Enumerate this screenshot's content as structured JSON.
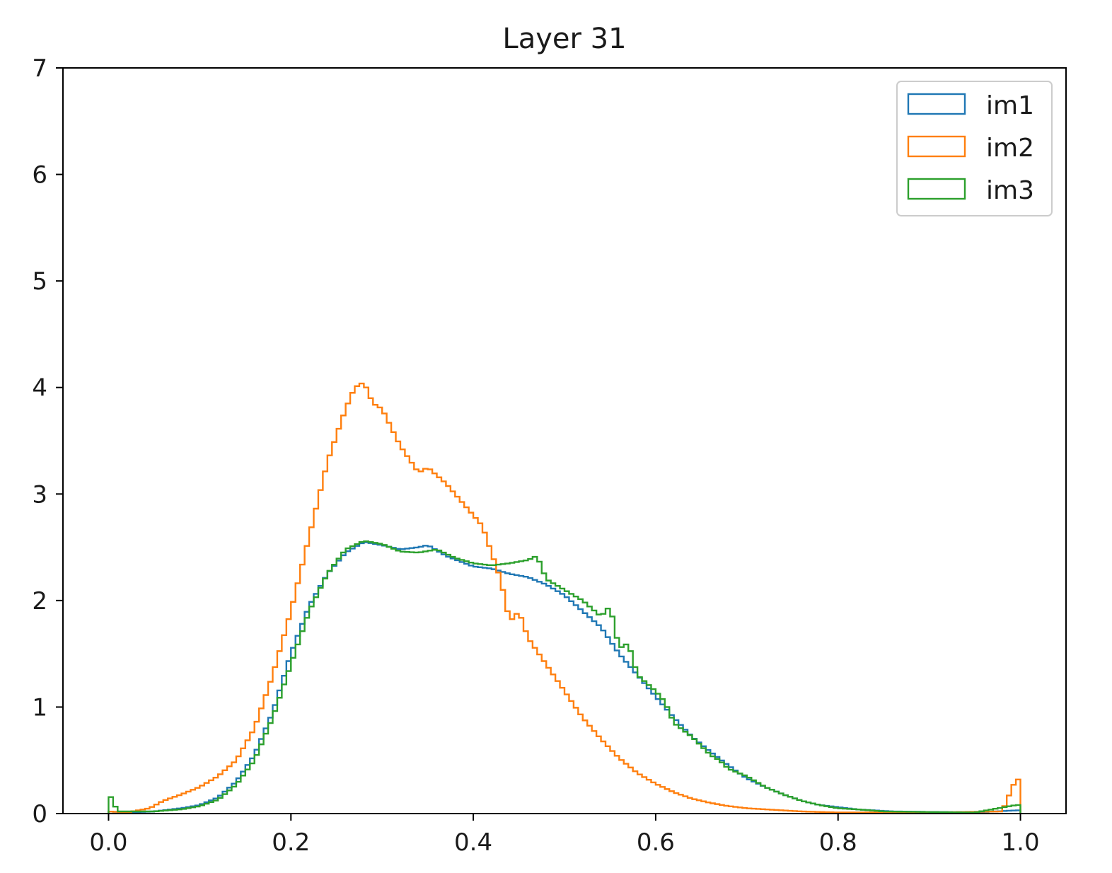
{
  "chart_data": {
    "type": "histogram-step",
    "title": "Layer 31",
    "xlabel": "",
    "ylabel": "",
    "xlim": [
      -0.05,
      1.05
    ],
    "ylim": [
      0,
      7
    ],
    "xticks": [
      0.0,
      0.2,
      0.4,
      0.6,
      0.8,
      1.0
    ],
    "xtick_labels": [
      "0.0",
      "0.2",
      "0.4",
      "0.6",
      "0.8",
      "1.0"
    ],
    "yticks": [
      0,
      1,
      2,
      3,
      4,
      5,
      6,
      7
    ],
    "ytick_labels": [
      "0",
      "1",
      "2",
      "3",
      "4",
      "5",
      "6",
      "7"
    ],
    "grid": false,
    "legend_position": "top-right",
    "bin_width": 0.005,
    "series": [
      {
        "name": "im1",
        "color": "#1f77b4",
        "points": [
          [
            0.0,
            0.02
          ],
          [
            0.02,
            0.01
          ],
          [
            0.05,
            0.02
          ],
          [
            0.08,
            0.05
          ],
          [
            0.1,
            0.08
          ],
          [
            0.12,
            0.15
          ],
          [
            0.14,
            0.3
          ],
          [
            0.16,
            0.55
          ],
          [
            0.18,
            0.95
          ],
          [
            0.2,
            1.5
          ],
          [
            0.22,
            1.95
          ],
          [
            0.24,
            2.25
          ],
          [
            0.26,
            2.45
          ],
          [
            0.28,
            2.55
          ],
          [
            0.3,
            2.52
          ],
          [
            0.32,
            2.48
          ],
          [
            0.34,
            2.5
          ],
          [
            0.35,
            2.52
          ],
          [
            0.37,
            2.42
          ],
          [
            0.4,
            2.32
          ],
          [
            0.42,
            2.3
          ],
          [
            0.44,
            2.25
          ],
          [
            0.46,
            2.22
          ],
          [
            0.48,
            2.15
          ],
          [
            0.5,
            2.05
          ],
          [
            0.52,
            1.9
          ],
          [
            0.54,
            1.75
          ],
          [
            0.56,
            1.5
          ],
          [
            0.58,
            1.3
          ],
          [
            0.6,
            1.1
          ],
          [
            0.62,
            0.9
          ],
          [
            0.64,
            0.72
          ],
          [
            0.66,
            0.58
          ],
          [
            0.68,
            0.45
          ],
          [
            0.7,
            0.33
          ],
          [
            0.72,
            0.25
          ],
          [
            0.74,
            0.18
          ],
          [
            0.76,
            0.12
          ],
          [
            0.78,
            0.08
          ],
          [
            0.8,
            0.06
          ],
          [
            0.82,
            0.04
          ],
          [
            0.84,
            0.03
          ],
          [
            0.86,
            0.02
          ],
          [
            0.9,
            0.015
          ],
          [
            0.95,
            0.01
          ],
          [
            0.995,
            0.03
          ]
        ]
      },
      {
        "name": "im2",
        "color": "#ff7f0e",
        "points": [
          [
            0.0,
            0.02
          ],
          [
            0.02,
            0.01
          ],
          [
            0.045,
            0.05
          ],
          [
            0.06,
            0.12
          ],
          [
            0.08,
            0.18
          ],
          [
            0.1,
            0.25
          ],
          [
            0.12,
            0.35
          ],
          [
            0.14,
            0.5
          ],
          [
            0.16,
            0.8
          ],
          [
            0.18,
            1.3
          ],
          [
            0.2,
            1.9
          ],
          [
            0.22,
            2.6
          ],
          [
            0.24,
            3.3
          ],
          [
            0.26,
            3.8
          ],
          [
            0.27,
            4.0
          ],
          [
            0.28,
            4.05
          ],
          [
            0.29,
            3.85
          ],
          [
            0.3,
            3.8
          ],
          [
            0.32,
            3.45
          ],
          [
            0.34,
            3.2
          ],
          [
            0.35,
            3.25
          ],
          [
            0.37,
            3.1
          ],
          [
            0.39,
            2.9
          ],
          [
            0.41,
            2.7
          ],
          [
            0.42,
            2.45
          ],
          [
            0.43,
            2.2
          ],
          [
            0.44,
            1.8
          ],
          [
            0.45,
            1.9
          ],
          [
            0.46,
            1.65
          ],
          [
            0.48,
            1.4
          ],
          [
            0.5,
            1.15
          ],
          [
            0.52,
            0.9
          ],
          [
            0.54,
            0.7
          ],
          [
            0.56,
            0.52
          ],
          [
            0.58,
            0.38
          ],
          [
            0.6,
            0.28
          ],
          [
            0.62,
            0.2
          ],
          [
            0.64,
            0.14
          ],
          [
            0.66,
            0.1
          ],
          [
            0.68,
            0.07
          ],
          [
            0.7,
            0.05
          ],
          [
            0.72,
            0.04
          ],
          [
            0.76,
            0.02
          ],
          [
            0.8,
            0.01
          ],
          [
            0.9,
            0.01
          ],
          [
            0.98,
            0.02
          ],
          [
            0.995,
            0.32
          ]
        ]
      },
      {
        "name": "im3",
        "color": "#2ca02c",
        "points": [
          [
            0.0,
            0.2
          ],
          [
            0.01,
            0.02
          ],
          [
            0.05,
            0.02
          ],
          [
            0.08,
            0.04
          ],
          [
            0.1,
            0.07
          ],
          [
            0.12,
            0.13
          ],
          [
            0.14,
            0.27
          ],
          [
            0.16,
            0.5
          ],
          [
            0.18,
            0.9
          ],
          [
            0.2,
            1.4
          ],
          [
            0.22,
            1.9
          ],
          [
            0.24,
            2.25
          ],
          [
            0.26,
            2.48
          ],
          [
            0.28,
            2.56
          ],
          [
            0.3,
            2.53
          ],
          [
            0.32,
            2.46
          ],
          [
            0.34,
            2.45
          ],
          [
            0.36,
            2.48
          ],
          [
            0.38,
            2.4
          ],
          [
            0.4,
            2.35
          ],
          [
            0.42,
            2.33
          ],
          [
            0.44,
            2.35
          ],
          [
            0.46,
            2.38
          ],
          [
            0.47,
            2.42
          ],
          [
            0.48,
            2.2
          ],
          [
            0.5,
            2.1
          ],
          [
            0.52,
            2.0
          ],
          [
            0.54,
            1.85
          ],
          [
            0.55,
            1.95
          ],
          [
            0.56,
            1.55
          ],
          [
            0.57,
            1.6
          ],
          [
            0.58,
            1.3
          ],
          [
            0.6,
            1.15
          ],
          [
            0.61,
            1.05
          ],
          [
            0.62,
            0.85
          ],
          [
            0.64,
            0.72
          ],
          [
            0.66,
            0.55
          ],
          [
            0.67,
            0.5
          ],
          [
            0.68,
            0.42
          ],
          [
            0.7,
            0.35
          ],
          [
            0.72,
            0.25
          ],
          [
            0.74,
            0.18
          ],
          [
            0.76,
            0.12
          ],
          [
            0.78,
            0.08
          ],
          [
            0.8,
            0.05
          ],
          [
            0.82,
            0.04
          ],
          [
            0.85,
            0.02
          ],
          [
            0.9,
            0.015
          ],
          [
            0.95,
            0.01
          ],
          [
            0.995,
            0.08
          ]
        ]
      }
    ]
  }
}
